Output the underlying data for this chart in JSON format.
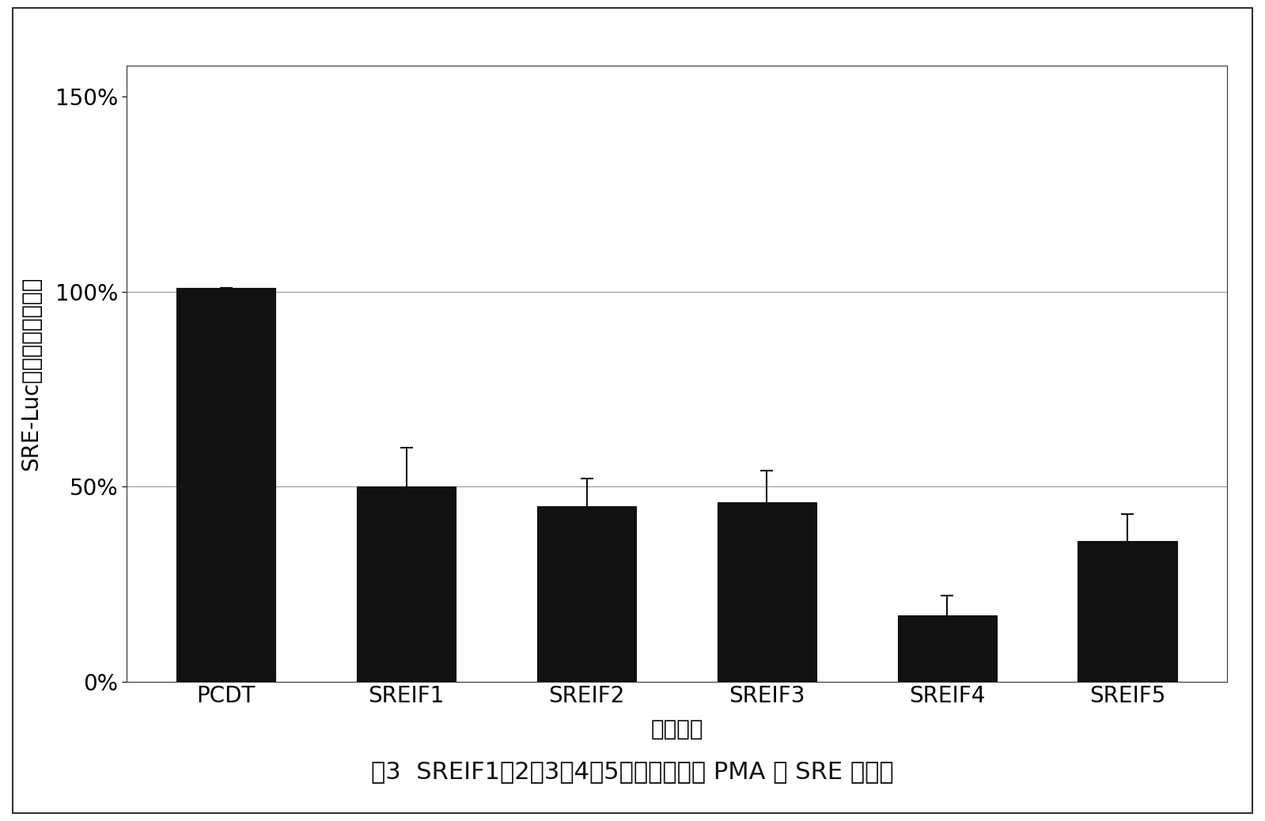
{
  "categories": [
    "PCDT",
    "SREIF1",
    "SREIF2",
    "SREIF3",
    "SREIF4",
    "SREIF5"
  ],
  "values": [
    101,
    50,
    45,
    46,
    17,
    36
  ],
  "errors": [
    0,
    10,
    7,
    8,
    5,
    7
  ],
  "bar_color": "#111111",
  "bar_edge_color": "#111111",
  "ylabel": "SRE-Luc荧光素酶活性比值",
  "xlabel": "基因名称",
  "yticks": [
    0,
    50,
    100,
    150
  ],
  "yticklabels": [
    "0%",
    "50%",
    "100%",
    "150%"
  ],
  "ylim": [
    0,
    158
  ],
  "title_text": "图3  SREIF1、2、3、4、5外源表达抑制 PMA 对 SRE 的活化",
  "background_color": "#ffffff",
  "plot_bg_color": "#ffffff",
  "grid_color": "#999999",
  "grid_ticks": [
    50,
    100
  ],
  "bar_width": 0.55,
  "error_capsize": 6,
  "error_linewidth": 1.5,
  "error_color": "#111111",
  "tick_fontsize": 20,
  "label_fontsize": 20,
  "title_fontsize": 22
}
